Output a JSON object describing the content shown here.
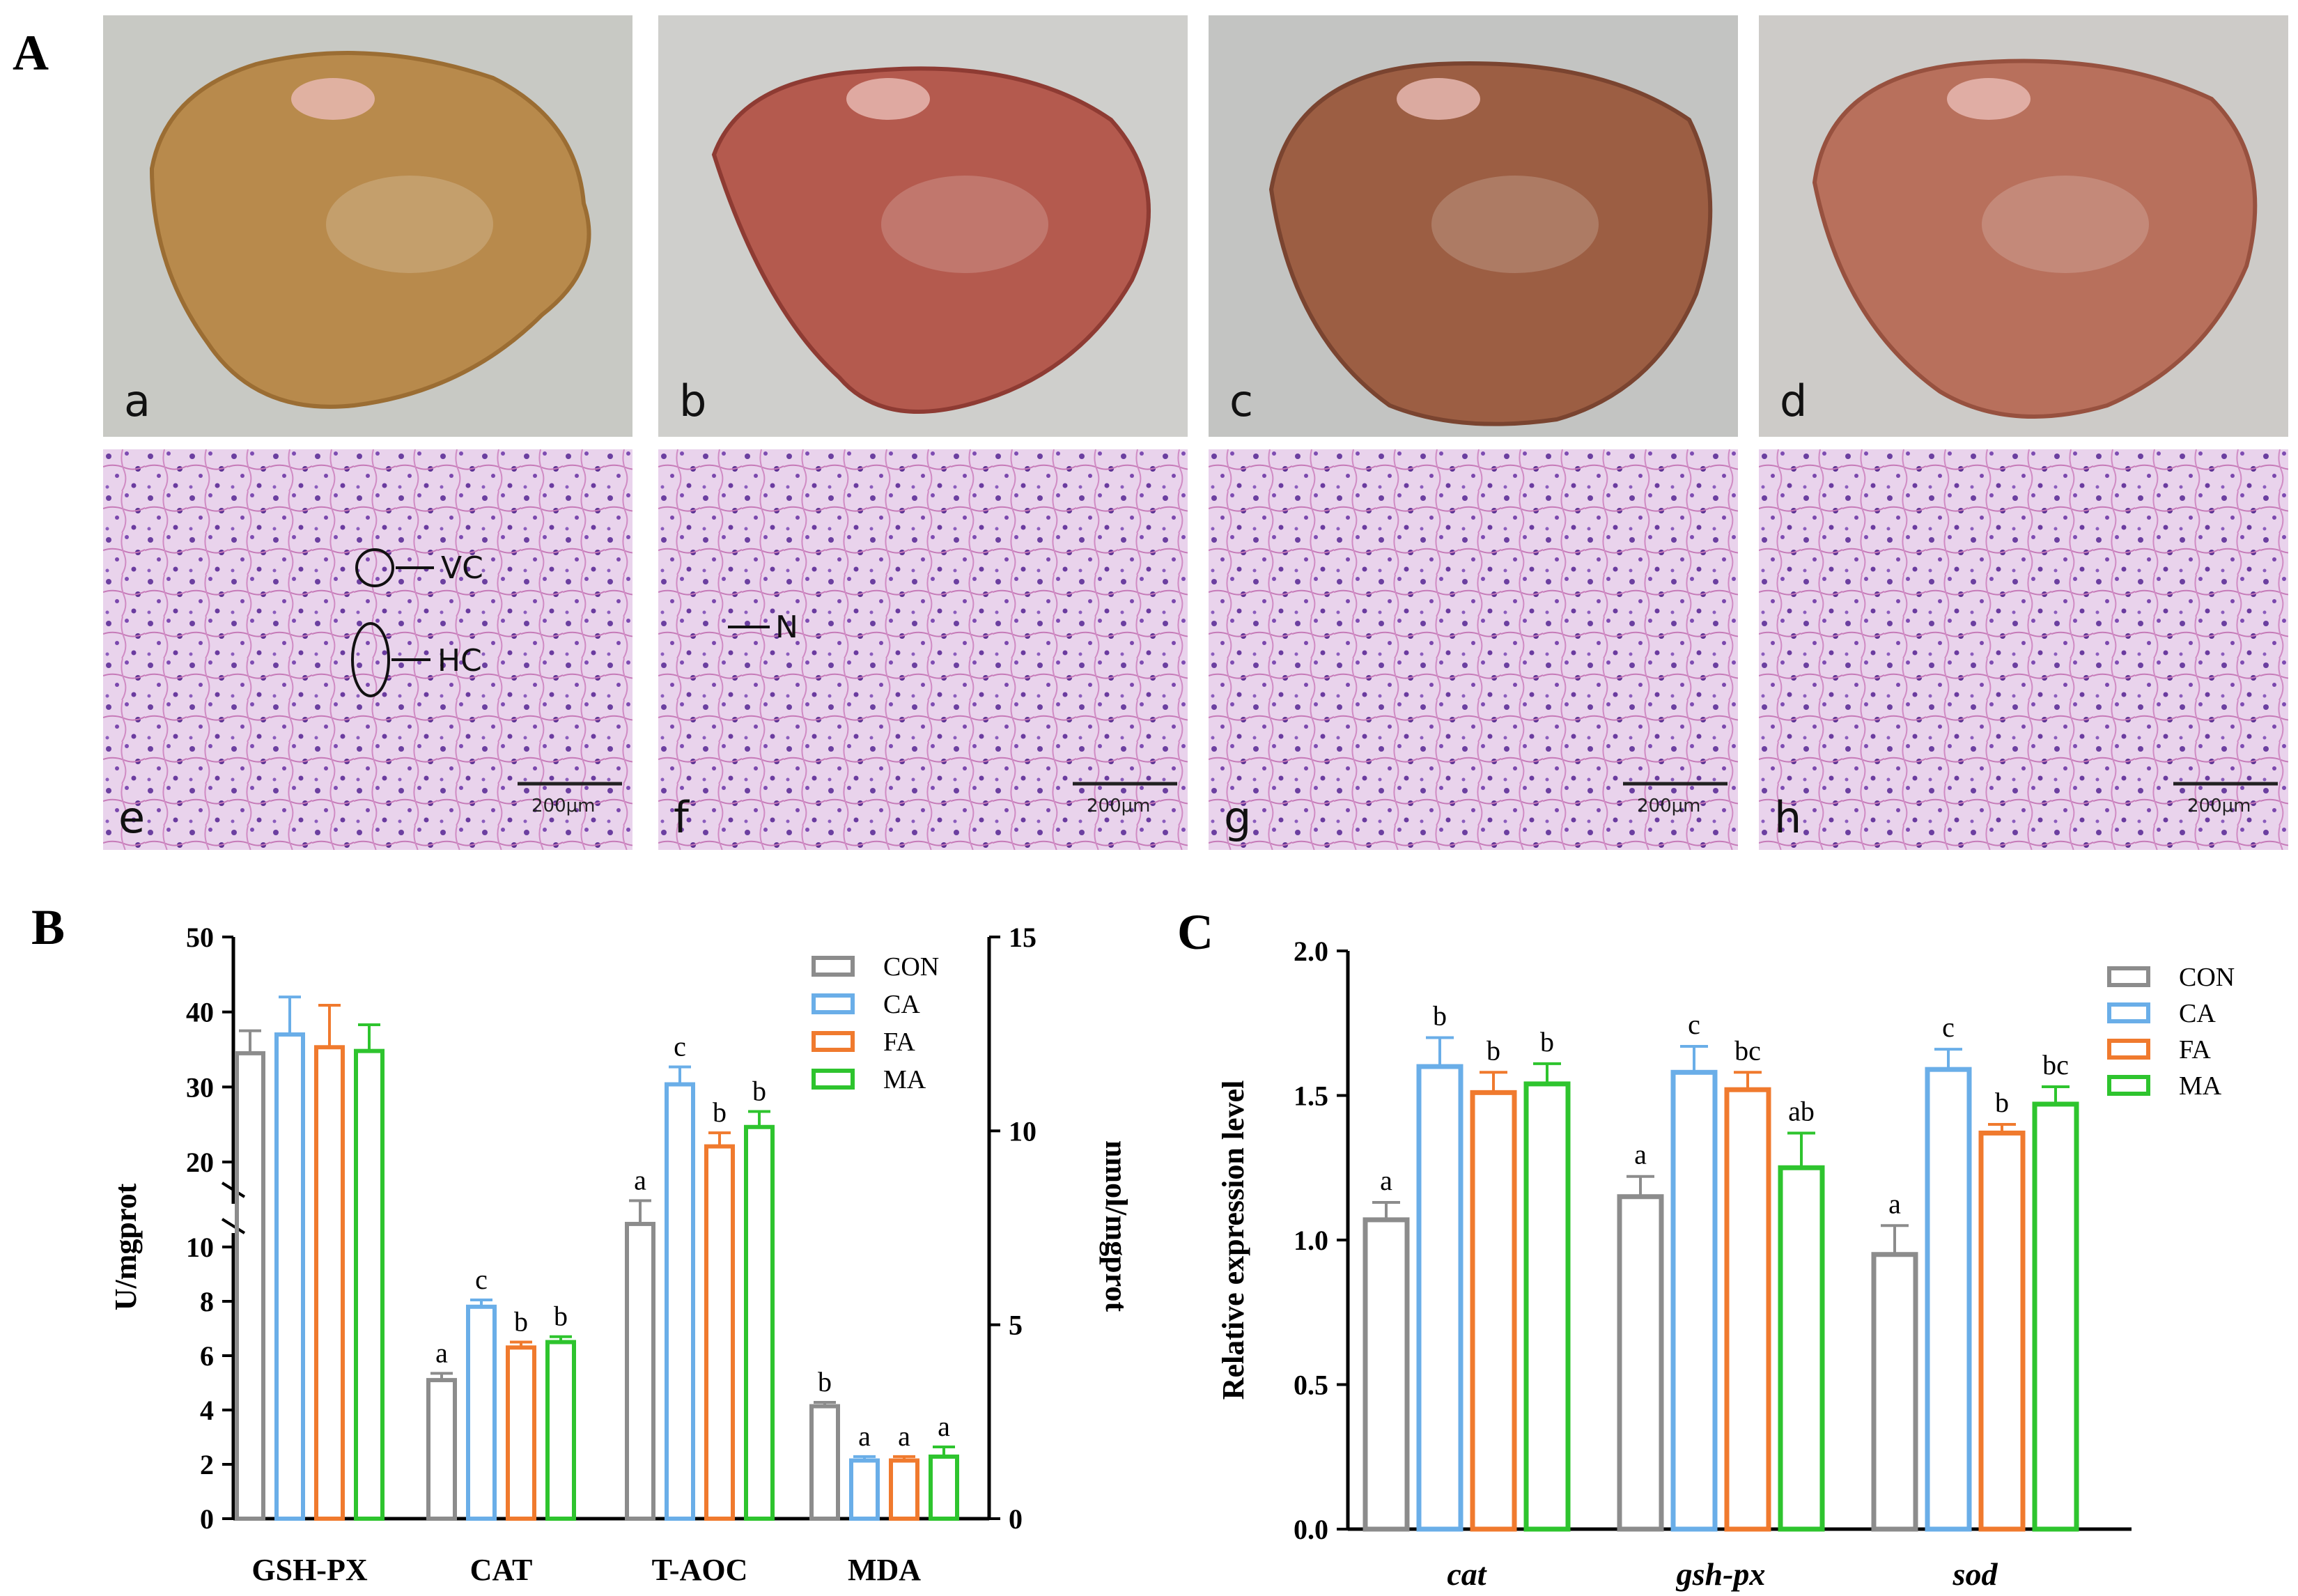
{
  "panel_labels": {
    "a": "A",
    "b": "B",
    "c": "C"
  },
  "photos": [
    {
      "letter": "a",
      "tone": "#b88a4c",
      "tone_dark": "#9b6d33",
      "bg": "#c8c9c4"
    },
    {
      "letter": "b",
      "tone": "#b45a4e",
      "tone_dark": "#8e3b33",
      "bg": "#cfcfcc"
    },
    {
      "letter": "c",
      "tone": "#9c5e43",
      "tone_dark": "#7a4430",
      "bg": "#c3c4c2"
    },
    {
      "letter": "d",
      "tone": "#b8705c",
      "tone_dark": "#97513f",
      "bg": "#cdcbc8"
    }
  ],
  "histology": [
    {
      "letter": "e",
      "scale": "200μm",
      "annotations": [
        "VC",
        "HC"
      ]
    },
    {
      "letter": "f",
      "scale": "200μm",
      "annotations": [
        "N"
      ]
    },
    {
      "letter": "g",
      "scale": "200μm",
      "annotations": []
    },
    {
      "letter": "h",
      "scale": "200μm",
      "annotations": []
    }
  ],
  "colors": {
    "CON": "#8c8c8c",
    "CA": "#6aaee8",
    "FA": "#f07a2e",
    "MA": "#2ec42e"
  },
  "chart_data": [
    {
      "type": "bar",
      "panel": "B",
      "categories": [
        "GSH-PX",
        "CAT",
        "T-AOC",
        "MDA"
      ],
      "series": [
        {
          "name": "CON",
          "values": [
            34.5,
            5.1,
            7.6,
            2.9
          ],
          "errors": [
            3.0,
            0.25,
            0.6,
            0.1
          ]
        },
        {
          "name": "CA",
          "values": [
            37.0,
            7.8,
            11.2,
            1.5
          ],
          "errors": [
            5.0,
            0.25,
            0.45,
            0.1
          ]
        },
        {
          "name": "FA",
          "values": [
            35.3,
            6.3,
            9.6,
            1.5
          ],
          "errors": [
            5.6,
            0.2,
            0.35,
            0.1
          ]
        },
        {
          "name": "MA",
          "values": [
            34.8,
            6.5,
            10.1,
            1.6
          ],
          "errors": [
            3.5,
            0.2,
            0.4,
            0.25
          ]
        }
      ],
      "axis_assignment": [
        "left",
        "left",
        "right",
        "right"
      ],
      "significance": [
        [
          "",
          "",
          "",
          ""
        ],
        [
          "a",
          "c",
          "b",
          "b"
        ],
        [
          "a",
          "c",
          "b",
          "b"
        ],
        [
          "b",
          "a",
          "a",
          "a"
        ]
      ],
      "ylabel": "U/mgprot",
      "y2label": "nmol/mgprot",
      "ylim_lower": [
        0,
        10
      ],
      "ylim_upper": [
        20,
        50
      ],
      "yticks_lower": [
        "0",
        "2",
        "4",
        "6",
        "8",
        "10"
      ],
      "yticks_upper": [
        "20",
        "30",
        "40",
        "50"
      ],
      "y2lim": [
        0,
        15
      ],
      "y2ticks": [
        "0",
        "5",
        "10",
        "15"
      ],
      "legend": [
        "CON",
        "CA",
        "FA",
        "MA"
      ],
      "legend_position": "top-right"
    },
    {
      "type": "bar",
      "panel": "C",
      "categories": [
        "cat",
        "gsh-px",
        "sod"
      ],
      "series": [
        {
          "name": "CON",
          "values": [
            1.07,
            1.15,
            0.95
          ],
          "errors": [
            0.06,
            0.07,
            0.1
          ]
        },
        {
          "name": "CA",
          "values": [
            1.6,
            1.58,
            1.59
          ],
          "errors": [
            0.1,
            0.09,
            0.07
          ]
        },
        {
          "name": "FA",
          "values": [
            1.51,
            1.52,
            1.37
          ],
          "errors": [
            0.07,
            0.06,
            0.03
          ]
        },
        {
          "name": "MA",
          "values": [
            1.54,
            1.25,
            1.47
          ],
          "errors": [
            0.07,
            0.12,
            0.06
          ]
        }
      ],
      "significance": [
        [
          "a",
          "a",
          "a"
        ],
        [
          "b",
          "c",
          "c"
        ],
        [
          "b",
          "bc",
          "b"
        ],
        [
          "b",
          "ab",
          "bc"
        ]
      ],
      "ylabel": "Relative expression level",
      "ylim": [
        0,
        2
      ],
      "yticks": [
        "0.0",
        "0.5",
        "1.0",
        "1.5",
        "2.0"
      ],
      "legend": [
        "CON",
        "CA",
        "FA",
        "MA"
      ],
      "legend_position": "top-right"
    }
  ]
}
